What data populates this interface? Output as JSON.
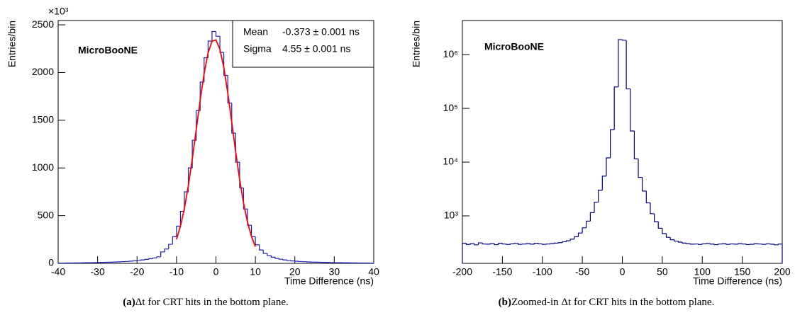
{
  "chart_data": [
    {
      "type": "histogram",
      "annotation": "MicroBooNE",
      "xlabel": "Time Difference (ns)",
      "ylabel": "Entries/bin",
      "y_multiplier": "×10³",
      "caption_label": "(a)",
      "caption": "Δt for CRT hits in the bottom plane.",
      "color": "#1c1cb8",
      "log_y": false,
      "bins": [
        -40,
        -39,
        -38,
        -37,
        -36,
        -35,
        -34,
        -33,
        -32,
        -31,
        -30,
        -29,
        -28,
        -27,
        -26,
        -25,
        -24,
        -23,
        -22,
        -21,
        -20,
        -19,
        -18,
        -17,
        -16,
        -15,
        -14,
        -13,
        -12,
        -11,
        -10,
        -9,
        -8,
        -7,
        -6,
        -5,
        -4,
        -3,
        -2,
        -1,
        0,
        1,
        2,
        3,
        4,
        5,
        6,
        7,
        8,
        9,
        10,
        11,
        12,
        13,
        14,
        15,
        16,
        17,
        18,
        19,
        20,
        21,
        22,
        23,
        24,
        25,
        26,
        27,
        28,
        29,
        30,
        31,
        32,
        33,
        34,
        35,
        36,
        37,
        38,
        39,
        40
      ],
      "values": [
        3,
        3,
        4,
        4,
        5,
        5,
        6,
        7,
        7,
        8,
        9,
        10,
        11,
        12,
        14,
        16,
        18,
        20,
        23,
        27,
        31,
        36,
        42,
        49,
        57,
        68,
        120,
        150,
        200,
        280,
        390,
        545,
        750,
        1000,
        1290,
        1600,
        1900,
        2155,
        2330,
        2430,
        2380,
        2210,
        1970,
        1680,
        1365,
        1060,
        790,
        570,
        400,
        280,
        195,
        140,
        105,
        82,
        65,
        52,
        43,
        36,
        30,
        26,
        22,
        19,
        17,
        15,
        13,
        12,
        11,
        10,
        9,
        8,
        7,
        7,
        6,
        6,
        5,
        5,
        4,
        4,
        4,
        3
      ],
      "fit": {
        "color": "#ff0000",
        "x": [
          -10,
          -9,
          -8,
          -7,
          -6,
          -5,
          -4,
          -3,
          -2,
          -1,
          0,
          1,
          2,
          3,
          4,
          5,
          6,
          7,
          8,
          9,
          10
        ],
        "values": [
          251,
          389,
          576,
          813,
          1094,
          1401,
          1710,
          1989,
          2205,
          2328,
          2342,
          2245,
          2051,
          1785,
          1481,
          1170,
          881,
          632,
          432,
          282,
          175
        ]
      },
      "stats": [
        {
          "label": "Mean",
          "value": "-0.373 ± 0.001 ns"
        },
        {
          "label": "Sigma",
          "value": "4.55 ± 0.001 ns"
        }
      ],
      "xlim": [
        -40,
        40
      ],
      "xticks": [
        -40,
        -30,
        -20,
        -10,
        0,
        10,
        20,
        30,
        40
      ],
      "ylim": [
        0,
        2545
      ],
      "yticks": [
        0,
        500,
        1000,
        1500,
        2000,
        2500
      ]
    },
    {
      "type": "histogram",
      "annotation": "MicroBooNE",
      "xlabel": "Time Difference (ns)",
      "ylabel": "Entries/bin",
      "caption_label": "(b)",
      "caption": "Zoomed-in Δt for CRT hits in the bottom plane.",
      "color": "#000080",
      "log_y": true,
      "bins": [
        -200,
        -195,
        -190,
        -185,
        -180,
        -175,
        -170,
        -165,
        -160,
        -155,
        -150,
        -145,
        -140,
        -135,
        -130,
        -125,
        -120,
        -115,
        -110,
        -105,
        -100,
        -95,
        -90,
        -85,
        -80,
        -75,
        -70,
        -65,
        -60,
        -55,
        -50,
        -45,
        -40,
        -35,
        -30,
        -25,
        -20,
        -15,
        -10,
        -5,
        0,
        5,
        10,
        15,
        20,
        25,
        30,
        35,
        40,
        45,
        50,
        55,
        60,
        65,
        70,
        75,
        80,
        85,
        90,
        95,
        100,
        105,
        110,
        115,
        120,
        125,
        130,
        135,
        140,
        145,
        150,
        155,
        160,
        165,
        170,
        175,
        180,
        185,
        190,
        195,
        200
      ],
      "values": [
        310,
        295,
        305,
        290,
        315,
        300,
        298,
        305,
        292,
        310,
        300,
        295,
        302,
        308,
        296,
        300,
        305,
        298,
        310,
        302,
        296,
        300,
        306,
        312,
        318,
        330,
        345,
        370,
        410,
        480,
        600,
        800,
        1150,
        1800,
        3000,
        5500,
        12000,
        40000,
        250000,
        1900000,
        1850000,
        230000,
        38000,
        11500,
        5200,
        2900,
        1750,
        1100,
        780,
        590,
        470,
        400,
        360,
        340,
        325,
        312,
        305,
        298,
        300,
        295,
        302,
        306,
        299,
        292,
        300,
        304,
        296,
        301,
        298,
        305,
        300,
        293,
        297,
        304,
        300,
        296,
        302,
        298,
        290,
        300
      ],
      "xlim": [
        -200,
        200
      ],
      "xticks": [
        -200,
        -150,
        -100,
        -50,
        0,
        50,
        100,
        150,
        200
      ],
      "ylim": [
        131,
        4300000
      ],
      "yticks": [
        {
          "value": 1000,
          "label": "10³"
        },
        {
          "value": 10000,
          "label": "10⁴"
        },
        {
          "value": 100000,
          "label": "10⁵"
        },
        {
          "value": 1000000,
          "label": "10⁶"
        }
      ]
    }
  ]
}
